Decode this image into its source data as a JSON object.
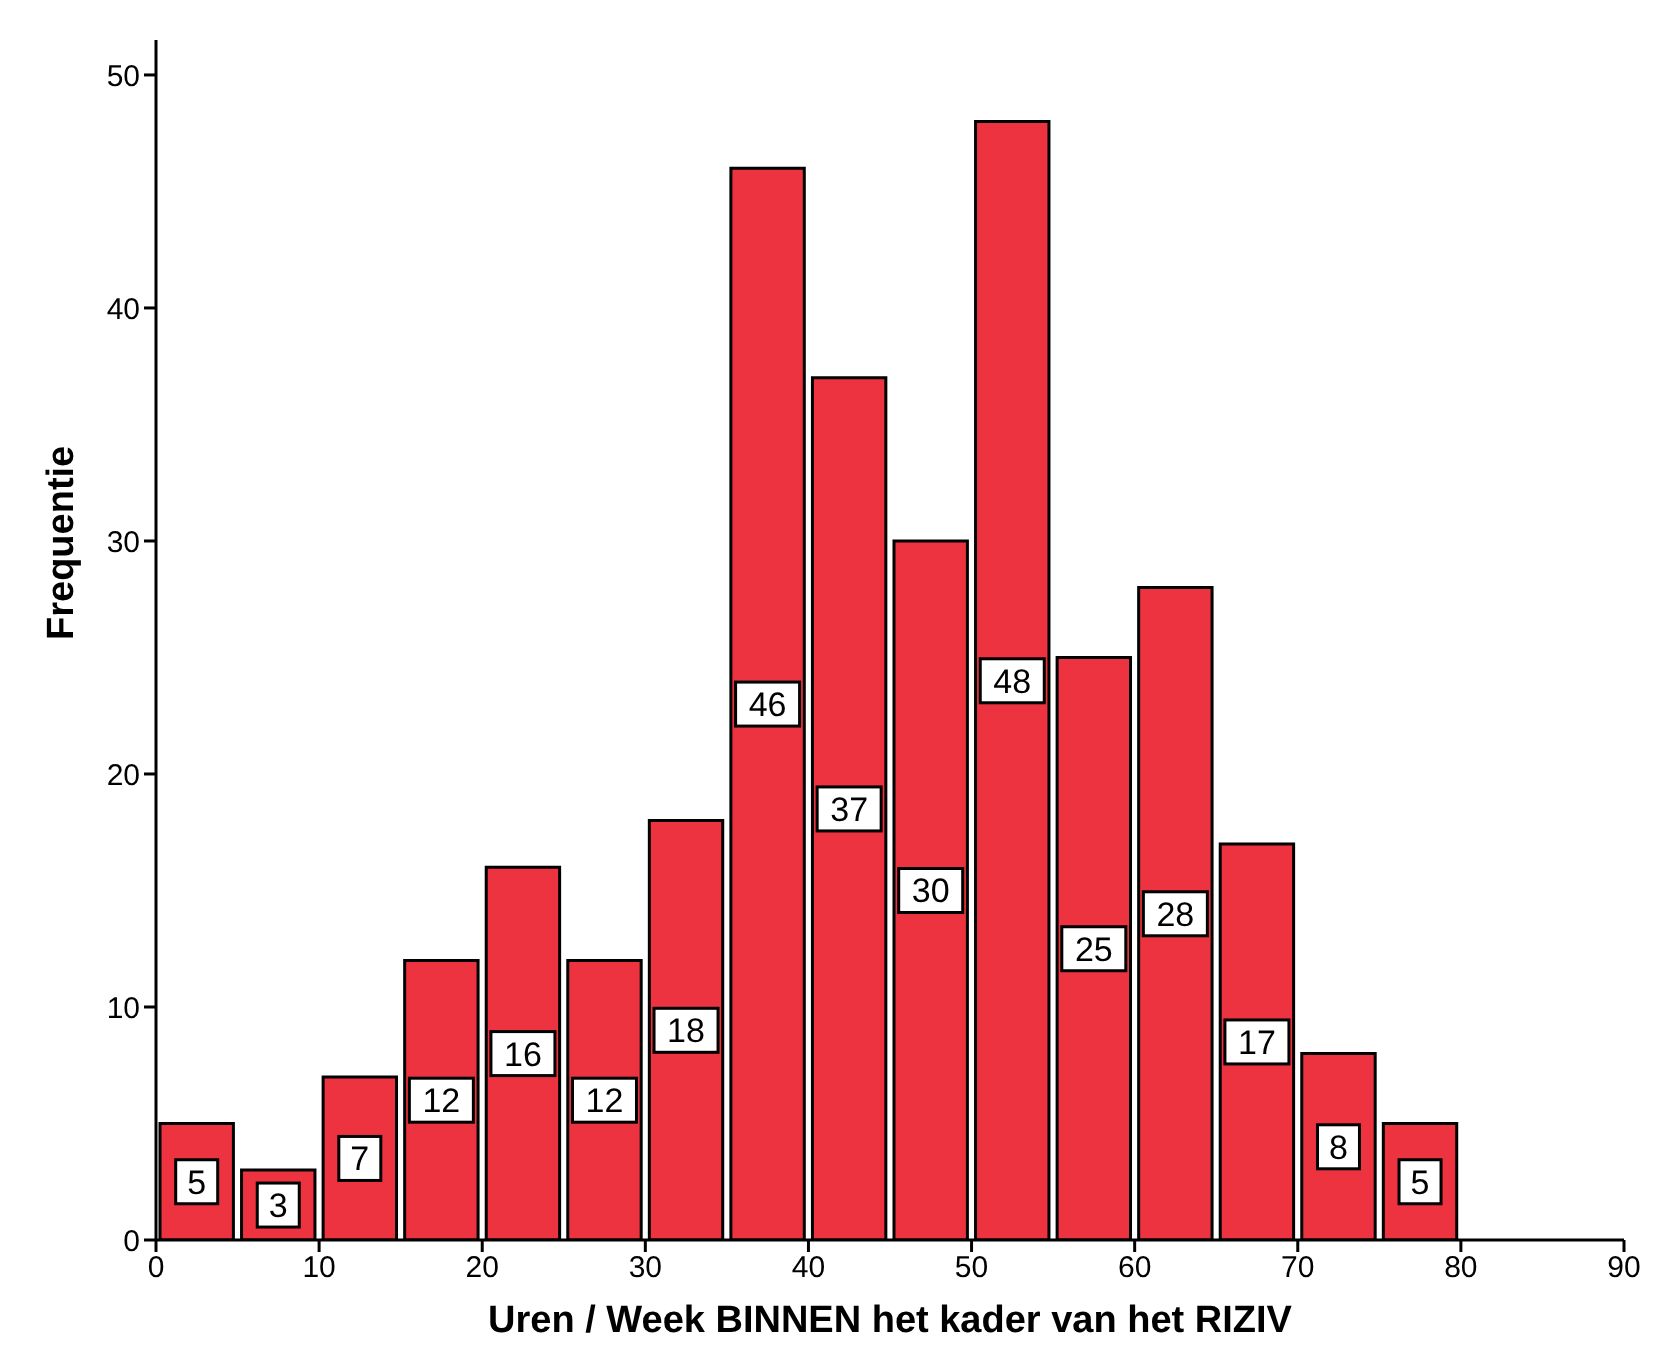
{
  "chart_data": {
    "type": "histogram",
    "xlabel": "Uren / Week BINNEN het kader van het RIZIV",
    "ylabel": "Frequentie",
    "bins": [
      0,
      5,
      10,
      15,
      20,
      25,
      30,
      35,
      40,
      45,
      50,
      55,
      60,
      65,
      70,
      75,
      80
    ],
    "values": [
      5,
      3,
      7,
      12,
      16,
      12,
      18,
      46,
      37,
      30,
      48,
      25,
      28,
      17,
      8,
      5
    ],
    "color": "#ee3340",
    "data_labels": true,
    "grid": false,
    "xlim": [
      0,
      90
    ],
    "xticks": [
      0,
      10,
      20,
      30,
      40,
      50,
      60,
      70,
      80,
      90
    ],
    "ylim": [
      0,
      51.5
    ],
    "yticks": [
      0,
      10,
      20,
      30,
      40,
      50
    ]
  }
}
